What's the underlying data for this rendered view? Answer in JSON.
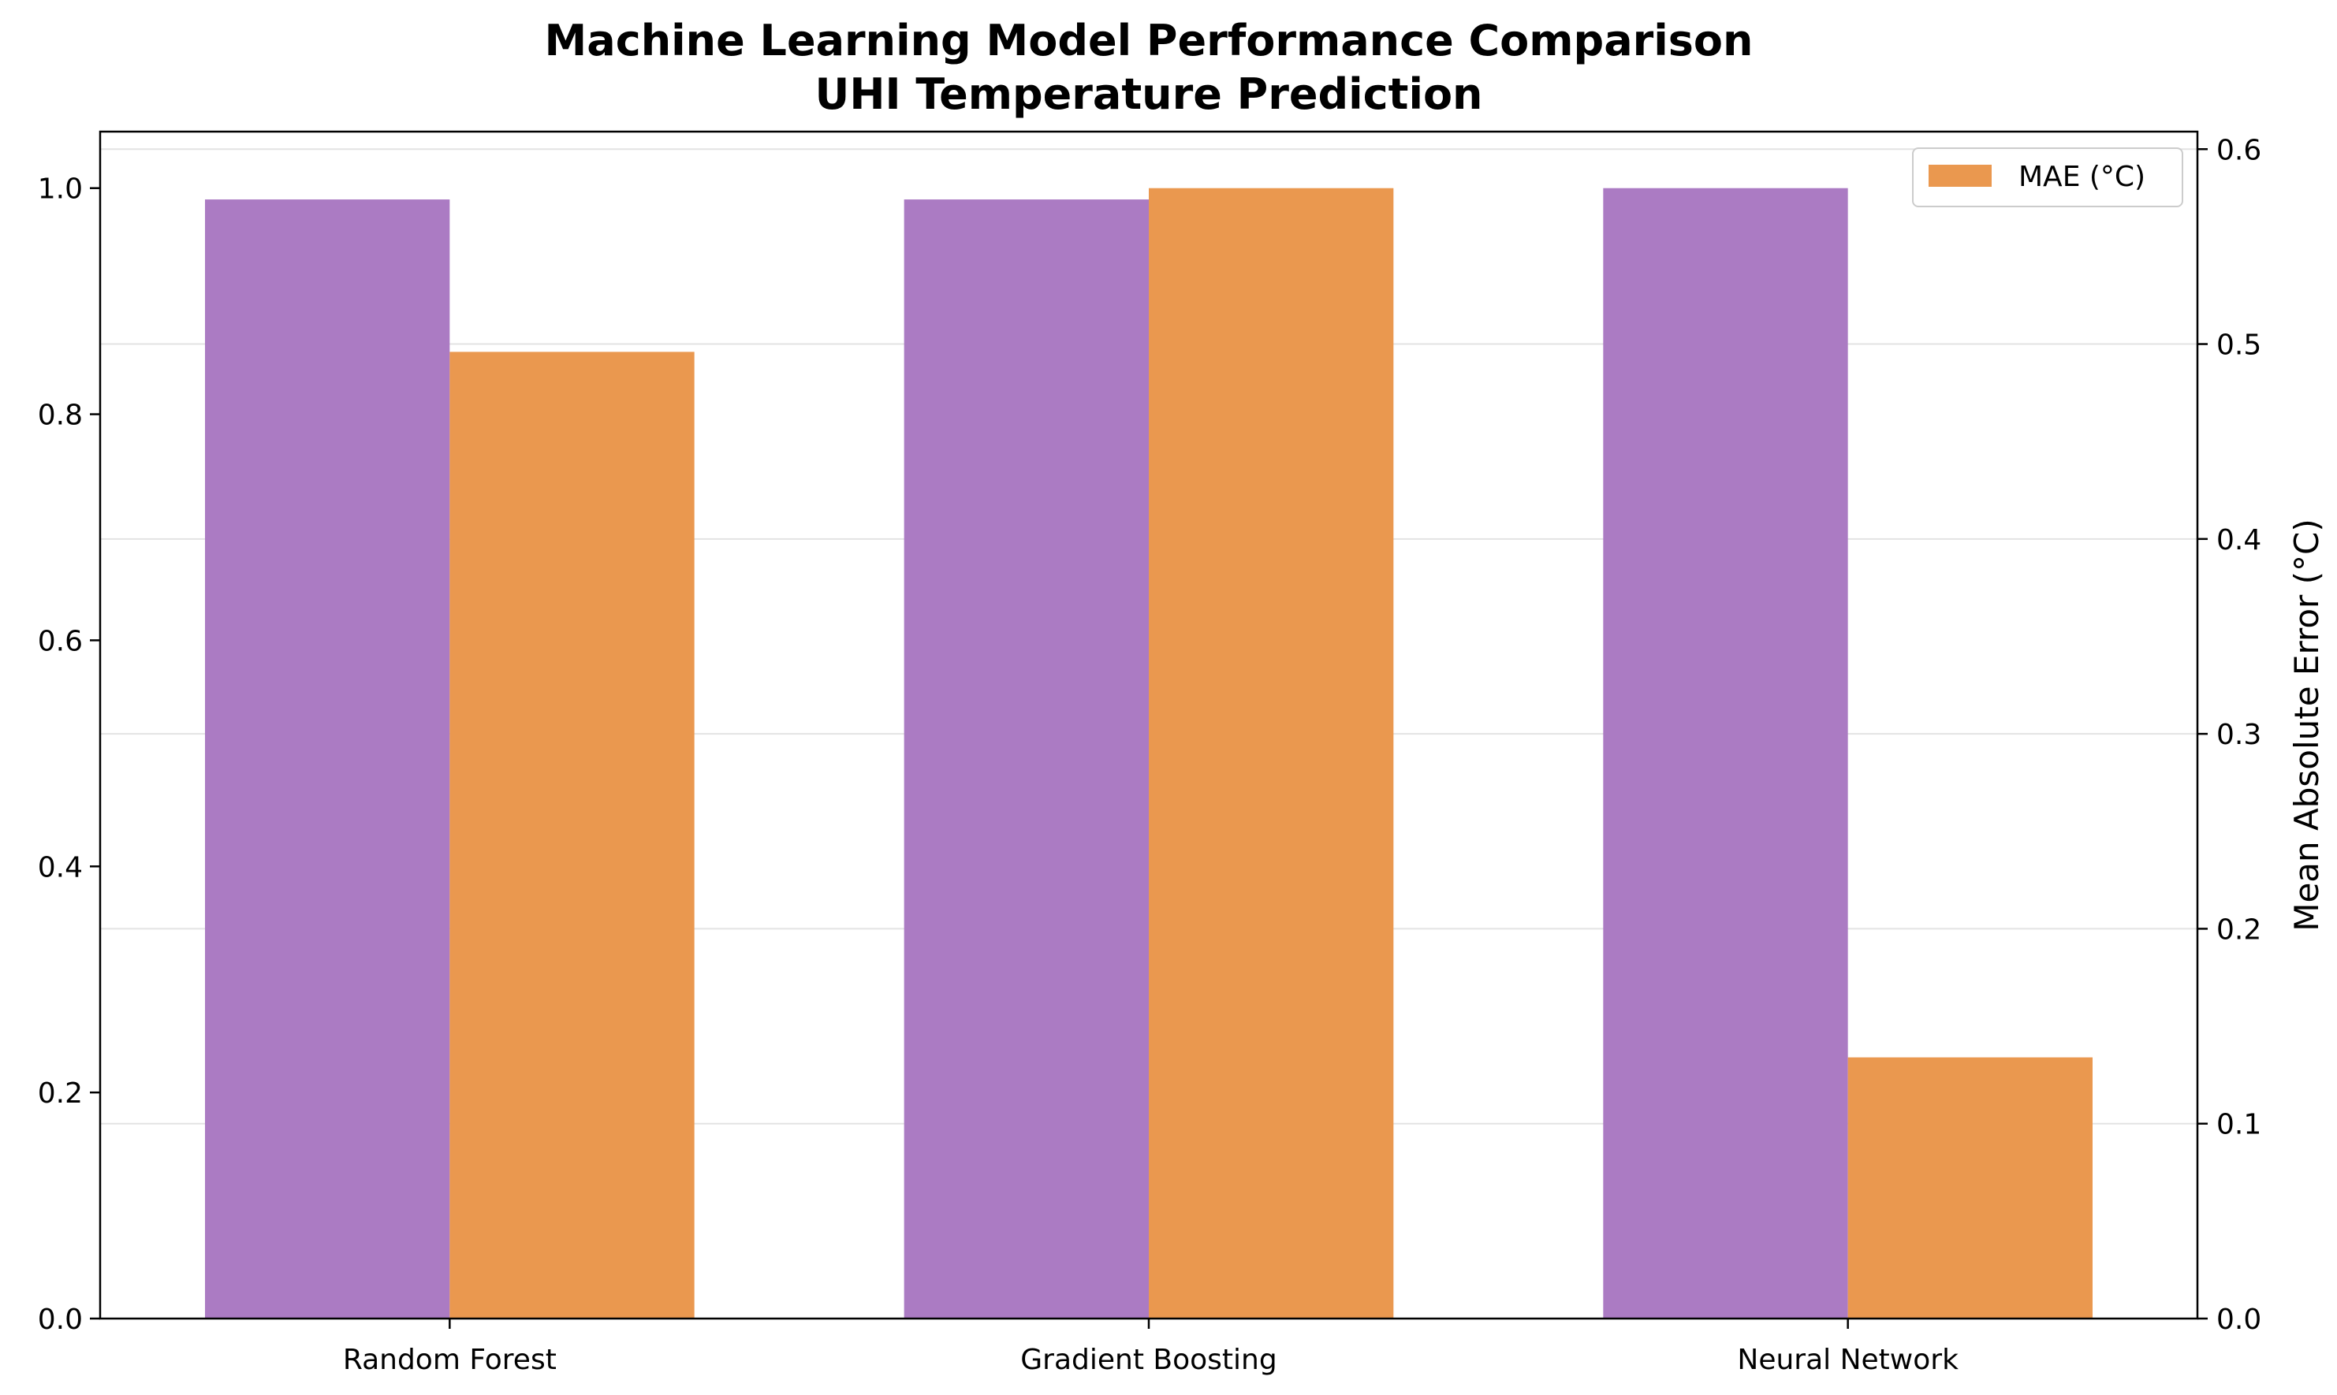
{
  "chart_data": {
    "type": "bar",
    "title": "Machine Learning Model Performance Comparison",
    "subtitle": "UHI Temperature Prediction",
    "categories": [
      "Random Forest",
      "Gradient Boosting",
      "Neural Network"
    ],
    "series": [
      {
        "values": [
          0.99,
          0.99,
          1.0
        ],
        "axis": "left",
        "color": "#ab7bc3"
      },
      {
        "name": "MAE (°C)",
        "values": [
          0.496,
          0.58,
          0.134
        ],
        "axis": "right",
        "color": "#ea984f"
      }
    ],
    "y_left": {
      "label": "",
      "ylim": [
        0,
        1.05
      ],
      "ticks": [
        0.0,
        0.2,
        0.4,
        0.6,
        0.8,
        1.0
      ],
      "tick_labels": [
        "0.0",
        "0.2",
        "0.4",
        "0.6",
        "0.8",
        "1.0"
      ]
    },
    "y_right": {
      "label": "Mean Absolute Error (°C)",
      "ylim": [
        0,
        0.609
      ],
      "ticks": [
        0.0,
        0.1,
        0.2,
        0.3,
        0.4,
        0.5,
        0.6
      ],
      "tick_labels": [
        "0.0",
        "0.1",
        "0.2",
        "0.3",
        "0.4",
        "0.5",
        "0.6"
      ]
    },
    "grid": "horizontal (right axis)",
    "legend": {
      "placement": "top-right",
      "entries": [
        "MAE (°C)"
      ]
    }
  }
}
